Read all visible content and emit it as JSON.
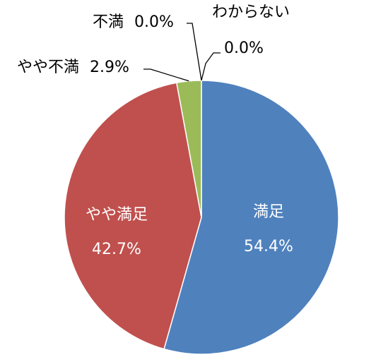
{
  "chart_data": {
    "type": "pie",
    "title": "",
    "categories": [
      "満足",
      "やや満足",
      "やや不満",
      "不満",
      "わからない"
    ],
    "values": [
      54.4,
      42.7,
      2.9,
      0.0,
      0.0
    ],
    "value_labels": [
      "54.4%",
      "42.7%",
      "2.9%",
      "0.0%",
      "0.0%"
    ],
    "colors": [
      "#4f81bd",
      "#c0504d",
      "#9bbb59",
      "#8064a2",
      "#4bacc6"
    ],
    "start_angle": "12 o'clock",
    "direction": "clockwise",
    "legend": "none",
    "label_placement": "satisfied and somewhat-satisfied inside slices; small slices outside with leader lines"
  }
}
